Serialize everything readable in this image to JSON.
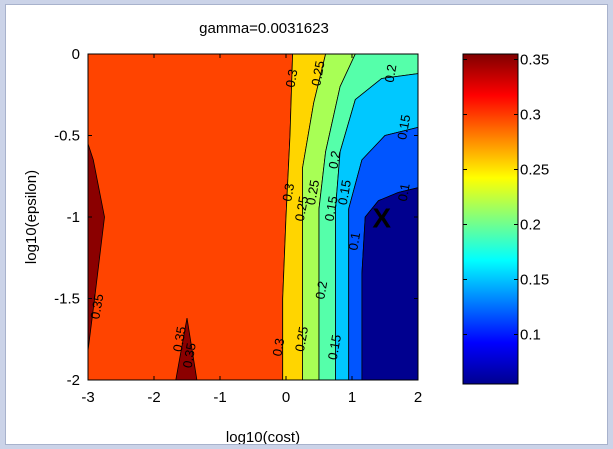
{
  "chart_data": {
    "type": "contour",
    "title": "gamma=0.0031623",
    "xlabel": "log10(cost)",
    "ylabel": "log10(epsilon)",
    "xlim": [
      -3,
      2
    ],
    "ylim": [
      -2,
      0
    ],
    "xticks": [
      "-3",
      "-2",
      "-1",
      "0",
      "1",
      "2"
    ],
    "yticks": [
      "0",
      "-0.5",
      "-1",
      "-1.5",
      "-2"
    ],
    "colormap": "jet",
    "clim": [
      0.055,
      0.355
    ],
    "colorbar_ticks": [
      "0.35",
      "0.3",
      "0.25",
      "0.2",
      "0.15",
      "0.1"
    ],
    "levels": [
      0.1,
      0.15,
      0.2,
      0.25,
      0.3,
      0.35
    ],
    "regions": [
      {
        "level": "0.3-0.35",
        "color": "#ff4400",
        "polygon": [
          [
            -3,
            0
          ],
          [
            0.1,
            0
          ],
          [
            0.06,
            -0.5
          ],
          [
            0.0,
            -1.0
          ],
          [
            -0.05,
            -1.5
          ],
          [
            -0.05,
            -2
          ],
          [
            -3,
            -2
          ]
        ]
      },
      {
        "level": "0.35+",
        "color": "#8b0000",
        "polygon": [
          [
            -3,
            -0.55
          ],
          [
            -2.92,
            -0.65
          ],
          [
            -2.75,
            -1.0
          ],
          [
            -2.9,
            -1.5
          ],
          [
            -3,
            -1.82
          ]
        ]
      },
      {
        "level": "0.35+",
        "color": "#8b0000",
        "polygon": [
          [
            -1.67,
            -2
          ],
          [
            -1.5,
            -1.62
          ],
          [
            -1.35,
            -2
          ]
        ]
      },
      {
        "level": "0.25-0.3",
        "color": "#ffd500",
        "polygon": [
          [
            0.1,
            0
          ],
          [
            0.6,
            0
          ],
          [
            0.42,
            -0.3
          ],
          [
            0.25,
            -0.7
          ],
          [
            0.25,
            -1.25
          ],
          [
            0.25,
            -1.7
          ],
          [
            0.25,
            -2
          ],
          [
            -0.05,
            -2
          ],
          [
            -0.05,
            -1.5
          ],
          [
            0.0,
            -1.0
          ],
          [
            0.06,
            -0.5
          ]
        ]
      },
      {
        "level": "0.2-0.25",
        "color": "#a8ff55",
        "polygon": [
          [
            0.6,
            0
          ],
          [
            1.05,
            0
          ],
          [
            0.82,
            -0.2
          ],
          [
            0.6,
            -0.6
          ],
          [
            0.5,
            -0.95
          ],
          [
            0.5,
            -1.35
          ],
          [
            0.5,
            -2
          ],
          [
            0.25,
            -2
          ],
          [
            0.25,
            -1.7
          ],
          [
            0.25,
            -1.25
          ],
          [
            0.25,
            -0.7
          ],
          [
            0.42,
            -0.3
          ]
        ]
      },
      {
        "level": "0.15-0.2",
        "color": "#55ffaa",
        "polygon": [
          [
            1.05,
            0
          ],
          [
            2,
            0
          ],
          [
            2,
            -0.12
          ],
          [
            1.45,
            -0.15
          ],
          [
            1.05,
            -0.28
          ],
          [
            0.82,
            -0.6
          ],
          [
            0.75,
            -0.95
          ],
          [
            0.75,
            -1.35
          ],
          [
            0.75,
            -2
          ],
          [
            0.5,
            -2
          ],
          [
            0.5,
            -1.35
          ],
          [
            0.5,
            -0.95
          ],
          [
            0.6,
            -0.6
          ],
          [
            0.82,
            -0.2
          ]
        ]
      },
      {
        "level": "0.1-0.15",
        "color": "#00c8ff",
        "polygon": [
          [
            2,
            -0.12
          ],
          [
            2,
            -0.45
          ],
          [
            1.5,
            -0.5
          ],
          [
            1.15,
            -0.65
          ],
          [
            0.95,
            -0.95
          ],
          [
            0.95,
            -1.35
          ],
          [
            0.95,
            -2
          ],
          [
            0.75,
            -2
          ],
          [
            0.75,
            -1.35
          ],
          [
            0.75,
            -0.95
          ],
          [
            0.82,
            -0.6
          ],
          [
            1.05,
            -0.28
          ],
          [
            1.45,
            -0.15
          ]
        ]
      },
      {
        "level": "0.05-0.1",
        "color": "#0055ff",
        "polygon": [
          [
            2,
            -0.45
          ],
          [
            2,
            -0.82
          ],
          [
            1.7,
            -0.85
          ],
          [
            1.4,
            -0.9
          ],
          [
            1.2,
            -1.0
          ],
          [
            1.15,
            -1.35
          ],
          [
            1.15,
            -2
          ],
          [
            0.95,
            -2
          ],
          [
            0.95,
            -1.35
          ],
          [
            0.95,
            -0.95
          ],
          [
            1.15,
            -0.65
          ],
          [
            1.5,
            -0.5
          ]
        ]
      },
      {
        "level": "below 0.1",
        "color": "#00008f",
        "polygon": [
          [
            2,
            -0.82
          ],
          [
            2,
            -2
          ],
          [
            1.15,
            -2
          ],
          [
            1.15,
            -1.35
          ],
          [
            1.2,
            -1.0
          ],
          [
            1.4,
            -0.9
          ],
          [
            1.7,
            -0.85
          ]
        ]
      }
    ],
    "contour_labels": [
      {
        "text": "0.3",
        "x": 0.1,
        "y": -0.15
      },
      {
        "text": "0.25",
        "x": 0.5,
        "y": -0.12
      },
      {
        "text": "0.2",
        "x": 1.6,
        "y": -0.12
      },
      {
        "text": "0.15",
        "x": 1.8,
        "y": -0.45
      },
      {
        "text": "0.1",
        "x": 1.8,
        "y": -0.85
      },
      {
        "text": "0.2",
        "x": 0.75,
        "y": -0.65
      },
      {
        "text": "0.25",
        "x": 0.42,
        "y": -0.85
      },
      {
        "text": "0.15",
        "x": 0.9,
        "y": -0.85
      },
      {
        "text": "0.3",
        "x": 0.05,
        "y": -0.85
      },
      {
        "text": "0.25",
        "x": 0.25,
        "y": -0.95
      },
      {
        "text": "0.15",
        "x": 0.7,
        "y": -0.95
      },
      {
        "text": "0.1",
        "x": 1.05,
        "y": -1.15
      },
      {
        "text": "0.2",
        "x": 0.55,
        "y": -1.45
      },
      {
        "text": "0.3",
        "x": -0.1,
        "y": -1.8
      },
      {
        "text": "0.25",
        "x": 0.25,
        "y": -1.75
      },
      {
        "text": "0.15",
        "x": 0.75,
        "y": -1.8
      },
      {
        "text": "0.35",
        "x": -2.85,
        "y": -1.55
      },
      {
        "text": "0.35",
        "x": -1.6,
        "y": -1.75
      },
      {
        "text": "0.35",
        "x": -1.45,
        "y": -1.85
      }
    ],
    "marker": {
      "text": "X",
      "x": 1.45,
      "y": -1.02
    }
  }
}
